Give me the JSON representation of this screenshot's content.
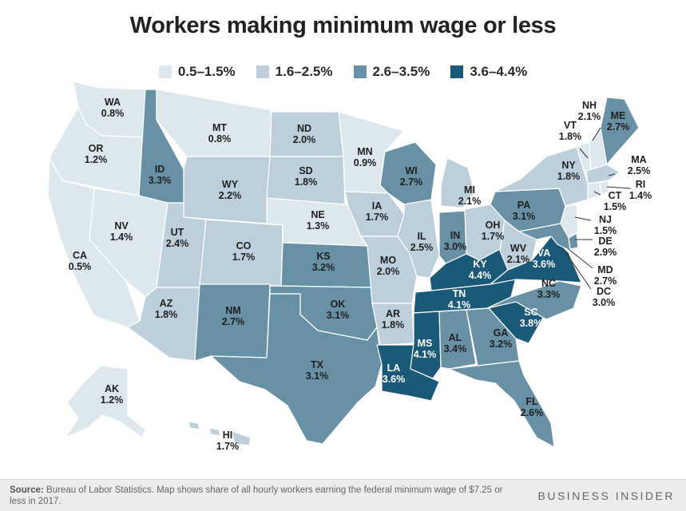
{
  "title": "Workers making minimum wage or less",
  "legend": [
    {
      "label": "0.5–1.5%",
      "color": "#dde8ee"
    },
    {
      "label": "1.6–2.5%",
      "color": "#bccfdb"
    },
    {
      "label": "2.6–3.5%",
      "color": "#6991a6"
    },
    {
      "label": "3.6–4.4%",
      "color": "#1b5978"
    }
  ],
  "states": [
    {
      "code": "WA",
      "value": "0.8%"
    },
    {
      "code": "OR",
      "value": "1.2%"
    },
    {
      "code": "CA",
      "value": "0.5%"
    },
    {
      "code": "NV",
      "value": "1.4%"
    },
    {
      "code": "ID",
      "value": "3.3%"
    },
    {
      "code": "MT",
      "value": "0.8%"
    },
    {
      "code": "WY",
      "value": "2.2%"
    },
    {
      "code": "UT",
      "value": "2.4%"
    },
    {
      "code": "AZ",
      "value": "1.8%"
    },
    {
      "code": "CO",
      "value": "1.7%"
    },
    {
      "code": "NM",
      "value": "2.7%"
    },
    {
      "code": "ND",
      "value": "2.0%"
    },
    {
      "code": "SD",
      "value": "1.8%"
    },
    {
      "code": "NE",
      "value": "1.3%"
    },
    {
      "code": "KS",
      "value": "3.2%"
    },
    {
      "code": "OK",
      "value": "3.1%"
    },
    {
      "code": "TX",
      "value": "3.1%"
    },
    {
      "code": "MN",
      "value": "0.9%"
    },
    {
      "code": "IA",
      "value": "1.7%"
    },
    {
      "code": "MO",
      "value": "2.0%"
    },
    {
      "code": "AR",
      "value": "1.8%"
    },
    {
      "code": "LA",
      "value": "3.6%"
    },
    {
      "code": "WI",
      "value": "2.7%"
    },
    {
      "code": "IL",
      "value": "2.5%"
    },
    {
      "code": "MI",
      "value": "2.1%"
    },
    {
      "code": "IN",
      "value": "3.0%"
    },
    {
      "code": "OH",
      "value": "1.7%"
    },
    {
      "code": "KY",
      "value": "4.4%"
    },
    {
      "code": "TN",
      "value": "4.1%"
    },
    {
      "code": "MS",
      "value": "4.1%"
    },
    {
      "code": "AL",
      "value": "3.4%"
    },
    {
      "code": "GA",
      "value": "3.2%"
    },
    {
      "code": "FL",
      "value": "2.6%"
    },
    {
      "code": "SC",
      "value": "3.8%"
    },
    {
      "code": "NC",
      "value": "3.3%"
    },
    {
      "code": "VA",
      "value": "3.6%"
    },
    {
      "code": "WV",
      "value": "2.1%"
    },
    {
      "code": "PA",
      "value": "3.1%"
    },
    {
      "code": "NY",
      "value": "1.8%"
    },
    {
      "code": "VT",
      "value": "1.8%"
    },
    {
      "code": "NH",
      "value": "2.1%"
    },
    {
      "code": "ME",
      "value": "2.7%"
    },
    {
      "code": "MA",
      "value": "2.5%"
    },
    {
      "code": "RI",
      "value": "1.4%"
    },
    {
      "code": "CT",
      "value": "1.5%"
    },
    {
      "code": "NJ",
      "value": "1.5%"
    },
    {
      "code": "DE",
      "value": "2.9%"
    },
    {
      "code": "MD",
      "value": "2.7%"
    },
    {
      "code": "DC",
      "value": "3.0%"
    },
    {
      "code": "AK",
      "value": "1.2%"
    },
    {
      "code": "HI",
      "value": "1.7%"
    }
  ],
  "footer": {
    "source_label": "Source:",
    "source_text": "Bureau of Labor Statistics. Map shows share of all hourly workers earning the federal minimum wage of $7.25 or less in 2017.",
    "brand": "BUSINESS INSIDER"
  }
}
